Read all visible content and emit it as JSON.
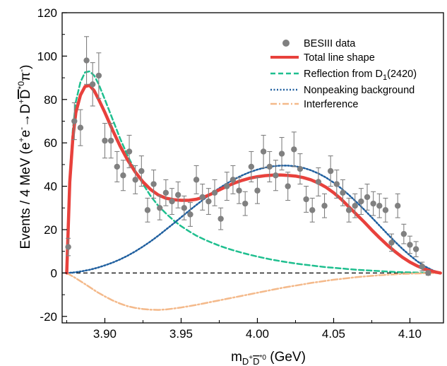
{
  "chart_data": {
    "type": "line",
    "xlabel": {
      "base": "m",
      "sub": "D",
      "sub_sup": "+",
      "sub_bar": "D",
      "sub_sup2": "*0",
      "unit": " (GeV)"
    },
    "ylabel": {
      "prefix": "Events / 4 MeV (e",
      "sup1": "+",
      "mid1": "e",
      "sup2": "-",
      "mid2": "→D",
      "sup3": "+",
      "bar": "D",
      "sup4": "*0",
      "mid3": "π",
      "sup5": "-",
      "suffix": ")"
    },
    "xlim": [
      3.872,
      4.122
    ],
    "ylim": [
      -23,
      120
    ],
    "x_ticks": [
      "3.90",
      "3.95",
      "4.00",
      "4.05",
      "4.10"
    ],
    "x_tick_values": [
      3.9,
      3.95,
      4.0,
      4.05,
      4.1
    ],
    "y_ticks": [
      "-20",
      "0",
      "20",
      "40",
      "60",
      "80",
      "100",
      "120"
    ],
    "y_tick_values": [
      -20,
      0,
      20,
      40,
      60,
      80,
      100,
      120
    ],
    "legend_position": "top-right",
    "legend": {
      "data": "BESIII data",
      "total": "Total line shape",
      "reflection_prefix": "Reflection from D",
      "reflection_sub": "1",
      "reflection_suffix": "(2420)",
      "background": "Nonpeaking background",
      "interference": "Interference"
    },
    "colors": {
      "data": "#808080",
      "total": "#e8413c",
      "reflection": "#1fbf8f",
      "background": "#1f5f9f",
      "interference": "#f4b98a",
      "zero_line": "#000000"
    },
    "data_points": {
      "x": [
        3.876,
        3.88,
        3.884,
        3.888,
        3.892,
        3.896,
        3.9,
        3.904,
        3.908,
        3.912,
        3.916,
        3.92,
        3.924,
        3.928,
        3.932,
        3.936,
        3.94,
        3.944,
        3.948,
        3.952,
        3.956,
        3.96,
        3.964,
        3.968,
        3.972,
        3.976,
        3.98,
        3.984,
        3.988,
        3.992,
        3.996,
        4.0,
        4.004,
        4.008,
        4.012,
        4.016,
        4.02,
        4.024,
        4.028,
        4.032,
        4.036,
        4.04,
        4.044,
        4.048,
        4.052,
        4.056,
        4.06,
        4.064,
        4.068,
        4.072,
        4.076,
        4.08,
        4.084,
        4.088,
        4.092,
        4.096,
        4.1,
        4.104,
        4.108,
        4.112
      ],
      "y": [
        12,
        70,
        67,
        98,
        87,
        91,
        61,
        61,
        49,
        45,
        56,
        43,
        47,
        29,
        41,
        30,
        37,
        33,
        36,
        30,
        27,
        43,
        35,
        33,
        37,
        25,
        40,
        43,
        38,
        32,
        49,
        38,
        56,
        49,
        45,
        55,
        40,
        57,
        48,
        34,
        29,
        42,
        31,
        47,
        41,
        37,
        29,
        31,
        33,
        35,
        32,
        31,
        29,
        14,
        31,
        18,
        13,
        11,
        3,
        0
      ],
      "err": [
        4,
        8.5,
        8.3,
        11,
        10,
        10.5,
        8,
        8,
        7,
        7,
        7.5,
        6.5,
        7,
        5.5,
        6.5,
        5.5,
        6,
        6,
        6,
        5.5,
        5.5,
        6.5,
        6,
        6,
        6,
        5,
        6.5,
        6.5,
        6,
        5.5,
        7,
        6,
        7.5,
        7,
        7,
        7.5,
        6.5,
        8,
        7,
        6,
        5.5,
        6.5,
        5.5,
        7,
        6.5,
        6,
        5.5,
        5.5,
        6,
        6,
        5.5,
        5.5,
        5.5,
        4,
        5.5,
        4.5,
        4,
        3.5,
        2,
        1
      ]
    },
    "series": [
      {
        "name": "Total line shape",
        "x": [
          3.875,
          3.877,
          3.879,
          3.881,
          3.884,
          3.887,
          3.89,
          3.893,
          3.896,
          3.9,
          3.905,
          3.91,
          3.915,
          3.92,
          3.925,
          3.93,
          3.935,
          3.94,
          3.945,
          3.95,
          3.955,
          3.96,
          3.965,
          3.97,
          3.975,
          3.98,
          3.985,
          3.99,
          3.995,
          4.0,
          4.005,
          4.01,
          4.015,
          4.02,
          4.025,
          4.03,
          4.035,
          4.04,
          4.045,
          4.05,
          4.055,
          4.06,
          4.065,
          4.07,
          4.075,
          4.08,
          4.085,
          4.09,
          4.095,
          4.1,
          4.105,
          4.11,
          4.115,
          4.12
        ],
        "y": [
          0,
          42,
          62,
          74,
          82,
          86,
          86.5,
          84,
          80,
          74,
          66,
          58.5,
          52,
          46.5,
          42,
          38.5,
          36,
          34.5,
          33.8,
          33.5,
          33.5,
          34,
          35,
          36.5,
          38.3,
          40,
          41.5,
          42.7,
          43.7,
          44.4,
          44.9,
          45.1,
          45.2,
          45,
          44.7,
          44,
          43,
          41.5,
          39.5,
          37,
          34,
          30.5,
          27,
          23.5,
          19.8,
          16.3,
          13,
          10,
          7.3,
          5,
          3.2,
          1.7,
          0.7,
          0
        ]
      },
      {
        "name": "Reflection from D1(2420)",
        "x": [
          3.875,
          3.877,
          3.879,
          3.881,
          3.884,
          3.887,
          3.89,
          3.893,
          3.896,
          3.9,
          3.905,
          3.91,
          3.915,
          3.92,
          3.925,
          3.93,
          3.935,
          3.94,
          3.945,
          3.95,
          3.955,
          3.96,
          3.965,
          3.97,
          3.975,
          3.98,
          3.985,
          3.99,
          3.995,
          4.0,
          4.005,
          4.01,
          4.015,
          4.02,
          4.025,
          4.03,
          4.035,
          4.04,
          4.045,
          4.05,
          4.055,
          4.06,
          4.065,
          4.07,
          4.075,
          4.08,
          4.085,
          4.09,
          4.095,
          4.1,
          4.105,
          4.11,
          4.115,
          4.12
        ],
        "y": [
          0,
          45,
          66,
          79,
          88,
          92.5,
          93,
          91,
          87,
          80,
          71,
          62,
          54,
          47,
          41,
          35.5,
          31,
          27.5,
          24.3,
          21.6,
          19.3,
          17.2,
          15.5,
          14,
          12.6,
          11.4,
          10.3,
          9.3,
          8.4,
          7.6,
          6.8,
          6.1,
          5.5,
          4.9,
          4.4,
          3.9,
          3.5,
          3.1,
          2.7,
          2.4,
          2.1,
          1.8,
          1.5,
          1.3,
          1.1,
          0.9,
          0.7,
          0.5,
          0.4,
          0.3,
          0.2,
          0.1,
          0.05,
          0
        ]
      },
      {
        "name": "Nonpeaking background",
        "x": [
          3.875,
          3.88,
          3.885,
          3.89,
          3.895,
          3.9,
          3.905,
          3.91,
          3.915,
          3.92,
          3.925,
          3.93,
          3.935,
          3.94,
          3.945,
          3.95,
          3.955,
          3.96,
          3.965,
          3.97,
          3.975,
          3.98,
          3.985,
          3.99,
          3.995,
          4.0,
          4.005,
          4.01,
          4.015,
          4.02,
          4.025,
          4.03,
          4.035,
          4.04,
          4.045,
          4.05,
          4.055,
          4.06,
          4.065,
          4.07,
          4.075,
          4.08,
          4.085,
          4.09,
          4.095,
          4.1,
          4.105,
          4.11,
          4.115,
          4.12
        ],
        "y": [
          0,
          0.3,
          0.8,
          1.5,
          2.4,
          3.5,
          4.8,
          6.3,
          8,
          10,
          12.2,
          14.6,
          17.2,
          20,
          22.8,
          25.7,
          28.6,
          31.4,
          34.1,
          36.7,
          39.1,
          41.3,
          43.3,
          45,
          46.5,
          47.7,
          48.6,
          49.2,
          49.5,
          49.5,
          49.2,
          48.5,
          47.4,
          45.9,
          44,
          41.7,
          39,
          36,
          32.7,
          29.2,
          25.6,
          21.9,
          18.2,
          14.6,
          11.2,
          8.1,
          5.3,
          3,
          1.2,
          0
        ]
      },
      {
        "name": "Interference",
        "x": [
          3.875,
          3.88,
          3.885,
          3.89,
          3.895,
          3.9,
          3.905,
          3.91,
          3.915,
          3.92,
          3.925,
          3.93,
          3.935,
          3.94,
          3.945,
          3.95,
          3.955,
          3.96,
          3.965,
          3.97,
          3.975,
          3.98,
          3.985,
          3.99,
          3.995,
          4.0,
          4.005,
          4.01,
          4.015,
          4.02,
          4.025,
          4.03,
          4.035,
          4.04,
          4.045,
          4.05,
          4.055,
          4.06,
          4.065,
          4.07,
          4.075,
          4.08,
          4.085,
          4.09,
          4.095,
          4.1,
          4.105,
          4.11,
          4.115,
          4.12
        ],
        "y": [
          0,
          -2,
          -4.2,
          -6.5,
          -8.8,
          -10.8,
          -12.6,
          -14.1,
          -15.3,
          -16.1,
          -16.6,
          -16.9,
          -17,
          -16.8,
          -16.4,
          -15.9,
          -15.3,
          -14.7,
          -14,
          -13.3,
          -12.6,
          -11.9,
          -11.2,
          -10.5,
          -9.8,
          -9.1,
          -8.4,
          -7.7,
          -7,
          -6.4,
          -5.8,
          -5.2,
          -4.6,
          -4.1,
          -3.6,
          -3.1,
          -2.7,
          -2.3,
          -1.9,
          -1.6,
          -1.3,
          -1,
          -0.8,
          -0.6,
          -0.4,
          -0.3,
          -0.2,
          -0.1,
          -0.05,
          0
        ]
      }
    ]
  }
}
